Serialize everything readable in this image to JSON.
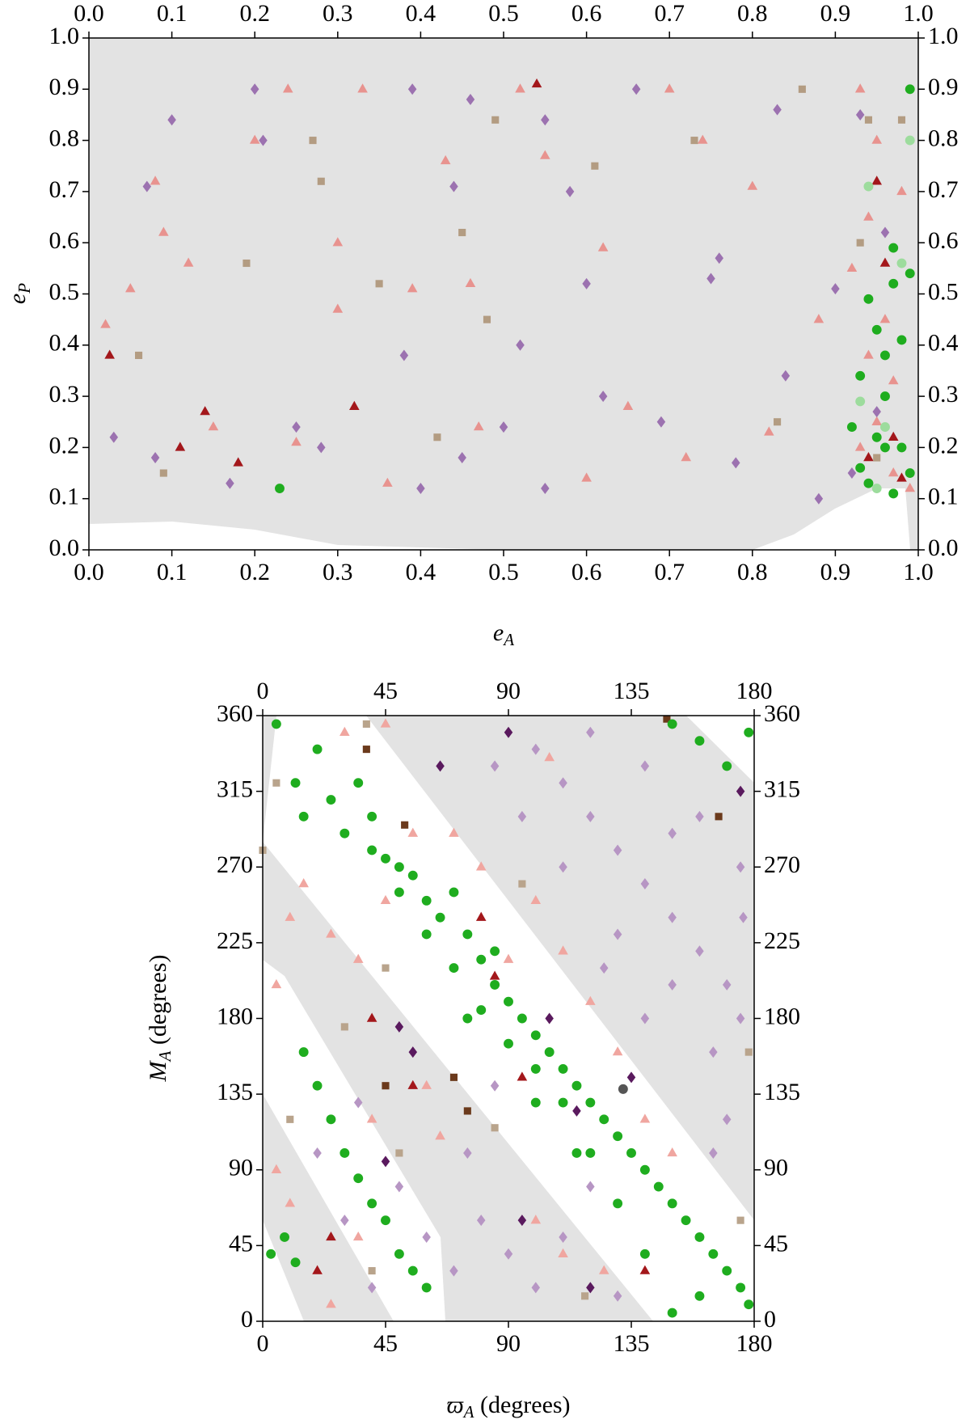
{
  "chart_data": [
    {
      "type": "scatter",
      "xlabel": "e_A",
      "ylabel": "e_P",
      "xlim": [
        0,
        1
      ],
      "ylim": [
        0,
        1
      ],
      "xticks": [
        {
          "value": 0,
          "label": "0.0"
        },
        0.1,
        0.2,
        0.3,
        0.4,
        0.5,
        0.6,
        0.7,
        0.8,
        0.9,
        {
          "value": 1,
          "label": "1.0"
        }
      ],
      "yticks": [
        {
          "value": 0,
          "label": "0.0"
        },
        0.1,
        0.2,
        0.3,
        0.4,
        0.5,
        0.6,
        0.7,
        0.8,
        0.9,
        {
          "value": 1,
          "label": "1.0"
        }
      ],
      "series": [
        {
          "color": "#e8938f",
          "marker": "triangle",
          "x": [
            0.02,
            0.08,
            0.09,
            0.12,
            0.2,
            0.24,
            0.3,
            0.33,
            0.39,
            0.43,
            0.46,
            0.52,
            0.55,
            0.62,
            0.7,
            0.74,
            0.8,
            0.88,
            0.3,
            0.25,
            0.05,
            0.15,
            0.36,
            0.6,
            0.72,
            0.82,
            0.47,
            0.65,
            0.93,
            0.95,
            0.94,
            0.96,
            0.97,
            0.95,
            0.93,
            0.97,
            0.99,
            0.92,
            0.98,
            0.94
          ],
          "y": [
            0.44,
            0.72,
            0.62,
            0.56,
            0.8,
            0.9,
            0.6,
            0.9,
            0.51,
            0.76,
            0.52,
            0.9,
            0.77,
            0.59,
            0.9,
            0.8,
            0.71,
            0.45,
            0.47,
            0.21,
            0.51,
            0.24,
            0.13,
            0.14,
            0.18,
            0.23,
            0.24,
            0.28,
            0.9,
            0.8,
            0.65,
            0.45,
            0.33,
            0.25,
            0.2,
            0.15,
            0.12,
            0.55,
            0.7,
            0.38
          ]
        },
        {
          "color": "#a3171b",
          "marker": "triangle",
          "x": [
            0.025,
            0.14,
            0.11,
            0.18,
            0.32,
            0.54,
            0.95,
            0.96,
            0.97,
            0.94,
            0.98
          ],
          "y": [
            0.38,
            0.27,
            0.2,
            0.17,
            0.28,
            0.91,
            0.72,
            0.56,
            0.22,
            0.18,
            0.14
          ]
        },
        {
          "color": "#9c72b0",
          "marker": "diamond",
          "x": [
            0.1,
            0.07,
            0.2,
            0.21,
            0.39,
            0.44,
            0.46,
            0.55,
            0.66,
            0.58,
            0.76,
            0.83,
            0.9,
            0.84,
            0.75,
            0.6,
            0.52,
            0.38,
            0.25,
            0.03,
            0.08,
            0.17,
            0.28,
            0.4,
            0.5,
            0.62,
            0.69,
            0.78,
            0.88,
            0.93,
            0.96,
            0.95,
            0.92,
            0.45,
            0.55
          ],
          "y": [
            0.84,
            0.71,
            0.9,
            0.8,
            0.9,
            0.71,
            0.88,
            0.84,
            0.9,
            0.7,
            0.57,
            0.86,
            0.51,
            0.34,
            0.53,
            0.52,
            0.4,
            0.38,
            0.24,
            0.22,
            0.18,
            0.13,
            0.2,
            0.12,
            0.24,
            0.3,
            0.25,
            0.17,
            0.1,
            0.85,
            0.62,
            0.27,
            0.15,
            0.18,
            0.12
          ]
        },
        {
          "color": "#b39c82",
          "marker": "square",
          "x": [
            0.06,
            0.19,
            0.27,
            0.28,
            0.35,
            0.45,
            0.49,
            0.61,
            0.73,
            0.86,
            0.48,
            0.42,
            0.09,
            0.83,
            0.94,
            0.98,
            0.95,
            0.93
          ],
          "y": [
            0.38,
            0.56,
            0.8,
            0.72,
            0.52,
            0.62,
            0.84,
            0.75,
            0.8,
            0.9,
            0.45,
            0.22,
            0.15,
            0.25,
            0.84,
            0.84,
            0.18,
            0.6
          ]
        },
        {
          "color": "#1fad1f",
          "marker": "circle",
          "x": [
            0.23,
            0.94,
            0.96,
            0.97,
            0.95,
            0.93,
            0.98,
            0.99,
            0.96,
            0.92,
            0.97,
            0.94,
            0.99,
            0.95,
            0.98,
            0.93,
            0.96,
            0.97,
            0.99
          ],
          "y": [
            0.12,
            0.49,
            0.38,
            0.59,
            0.22,
            0.16,
            0.2,
            0.9,
            0.3,
            0.24,
            0.52,
            0.13,
            0.15,
            0.43,
            0.41,
            0.34,
            0.2,
            0.11,
            0.54
          ]
        },
        {
          "color": "#9ddc9d",
          "marker": "circle",
          "x": [
            0.94,
            0.99,
            0.93,
            0.98,
            0.96,
            0.95
          ],
          "y": [
            0.71,
            0.8,
            0.29,
            0.56,
            0.24,
            0.12
          ]
        }
      ]
    },
    {
      "type": "scatter",
      "xlabel": "ϖ_A (degrees)",
      "ylabel": "M_A (degrees)",
      "xlim": [
        0,
        180
      ],
      "ylim": [
        0,
        360
      ],
      "xticks": [
        0,
        45,
        90,
        135,
        180
      ],
      "yticks": [
        0,
        45,
        90,
        135,
        180,
        225,
        270,
        315,
        360
      ],
      "series": [
        {
          "color": "#f0a6a0",
          "marker": "triangle",
          "x": [
            5,
            10,
            15,
            25,
            35,
            45,
            55,
            70,
            80,
            90,
            100,
            110,
            120,
            130,
            5,
            10,
            20,
            25,
            35,
            40,
            60,
            65,
            100,
            110,
            125,
            140,
            150,
            30,
            45,
            105
          ],
          "y": [
            200,
            240,
            260,
            230,
            215,
            250,
            290,
            290,
            270,
            215,
            250,
            220,
            190,
            160,
            90,
            70,
            30,
            10,
            50,
            120,
            140,
            110,
            60,
            40,
            30,
            120,
            100,
            350,
            355,
            335
          ]
        },
        {
          "color": "#a3171b",
          "marker": "triangle",
          "x": [
            20,
            40,
            25,
            80,
            85,
            55,
            140,
            95
          ],
          "y": [
            30,
            180,
            50,
            240,
            205,
            140,
            30,
            145
          ]
        },
        {
          "color": "#b796c4",
          "marker": "diamond",
          "x": [
            100,
            110,
            120,
            130,
            140,
            150,
            160,
            170,
            175,
            165,
            120,
            140,
            160,
            175,
            130,
            150,
            170,
            165,
            140,
            110,
            95,
            85,
            150,
            125,
            176,
            60,
            70,
            80,
            90,
            100,
            110,
            40,
            50,
            75,
            85,
            30,
            20,
            35,
            120,
            130
          ],
          "y": [
            340,
            320,
            300,
            280,
            260,
            240,
            220,
            200,
            180,
            160,
            350,
            330,
            300,
            270,
            230,
            200,
            120,
            100,
            180,
            270,
            300,
            330,
            290,
            210,
            240,
            50,
            30,
            60,
            40,
            20,
            50,
            20,
            80,
            100,
            140,
            60,
            100,
            130,
            80,
            15
          ]
        },
        {
          "color": "#5a1a5e",
          "marker": "diamond",
          "x": [
            90,
            50,
            55,
            105,
            65,
            95,
            115,
            120,
            135,
            45,
            175
          ],
          "y": [
            350,
            175,
            160,
            180,
            330,
            60,
            125,
            20,
            145,
            95,
            315
          ]
        },
        {
          "color": "#b9a48c",
          "marker": "square",
          "x": [
            0,
            5,
            38,
            40,
            45,
            30,
            10,
            50,
            85,
            95,
            118,
            178,
            175
          ],
          "y": [
            280,
            320,
            355,
            30,
            210,
            175,
            120,
            100,
            115,
            260,
            15,
            160,
            60
          ]
        },
        {
          "color": "#6b3a1c",
          "marker": "square",
          "x": [
            52,
            75,
            70,
            148,
            38,
            45,
            167
          ],
          "y": [
            295,
            125,
            145,
            358,
            340,
            140,
            300
          ]
        },
        {
          "color": "#1fad1f",
          "marker": "circle",
          "x": [
            5,
            12,
            15,
            20,
            25,
            30,
            35,
            40,
            45,
            50,
            55,
            60,
            65,
            70,
            75,
            80,
            85,
            90,
            95,
            100,
            105,
            110,
            115,
            120,
            125,
            130,
            135,
            140,
            145,
            150,
            155,
            160,
            165,
            170,
            175,
            178,
            150,
            160,
            140,
            130,
            120,
            110,
            100,
            90,
            80,
            70,
            60,
            50,
            40,
            3,
            8,
            12,
            15,
            20,
            25,
            30,
            35,
            40,
            45,
            50,
            55,
            60,
            150,
            160,
            170,
            178,
            100,
            85,
            75,
            115
          ],
          "y": [
            355,
            320,
            300,
            340,
            310,
            290,
            320,
            300,
            275,
            270,
            265,
            250,
            240,
            255,
            230,
            215,
            200,
            190,
            180,
            170,
            160,
            150,
            140,
            130,
            120,
            110,
            100,
            90,
            80,
            70,
            60,
            50,
            40,
            30,
            20,
            10,
            5,
            15,
            40,
            70,
            100,
            130,
            150,
            165,
            185,
            210,
            230,
            255,
            280,
            40,
            50,
            35,
            160,
            140,
            120,
            100,
            85,
            70,
            60,
            40,
            30,
            20,
            355,
            345,
            330,
            350,
            130,
            220,
            180,
            100
          ]
        },
        {
          "color": "#555555",
          "marker": "circle",
          "x": [
            132
          ],
          "y": [
            138
          ]
        }
      ]
    }
  ]
}
